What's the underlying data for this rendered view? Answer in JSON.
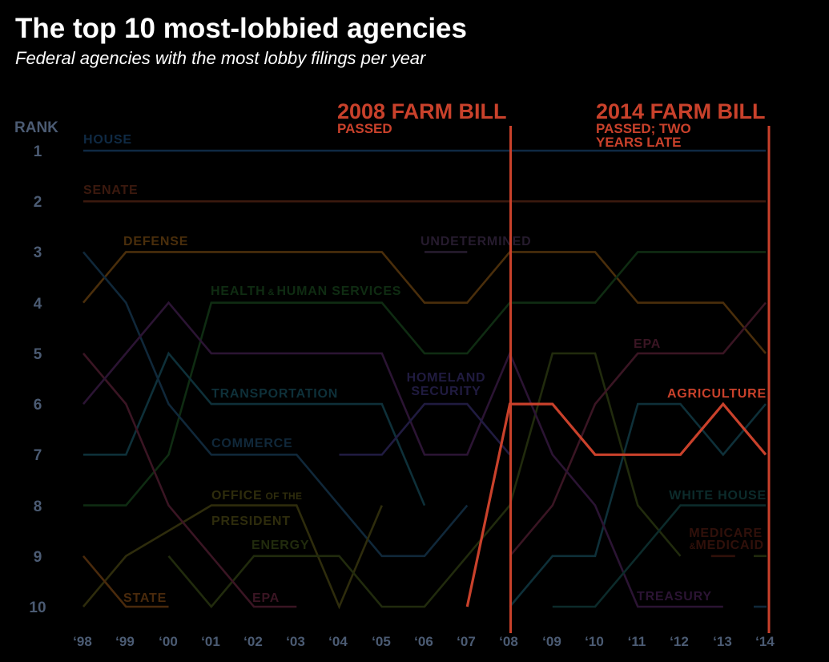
{
  "colors": {
    "background": "#000000",
    "title": "#ffffff",
    "axis_text": "#4b5b73",
    "annotation": "#c9412b"
  },
  "chart_data": {
    "type": "line",
    "subtype": "bump",
    "title": "The top 10 most-lobbied agencies",
    "subtitle": "Federal agencies with the most lobby filings per year",
    "xlabel": "",
    "ylabel": "RANK",
    "x": [
      1998,
      1999,
      2000,
      2001,
      2002,
      2003,
      2004,
      2005,
      2006,
      2007,
      2008,
      2009,
      2010,
      2011,
      2012,
      2013,
      2014
    ],
    "x_tick_labels": [
      "‘98",
      "‘99",
      "‘00",
      "‘01",
      "‘02",
      "‘03",
      "‘04",
      "‘05",
      "‘06",
      "‘07",
      "‘08",
      "‘09",
      "‘10",
      "‘11",
      "‘12",
      "‘13",
      "‘14"
    ],
    "y_tick_labels": [
      "1",
      "2",
      "3",
      "4",
      "5",
      "6",
      "7",
      "8",
      "9",
      "10"
    ],
    "ylim": [
      1,
      10
    ],
    "y_inverted": true,
    "grid": false,
    "legend": "direct labels on lines",
    "series": [
      {
        "id": "house",
        "name": "House",
        "label": "HOUSE",
        "color": "#0f2a44",
        "values": [
          1,
          1,
          1,
          1,
          1,
          1,
          1,
          1,
          1,
          1,
          1,
          1,
          1,
          1,
          1,
          1,
          1
        ]
      },
      {
        "id": "senate",
        "name": "Senate",
        "label": "SENATE",
        "color": "#3b190e",
        "values": [
          2,
          2,
          2,
          2,
          2,
          2,
          2,
          2,
          2,
          2,
          2,
          2,
          2,
          2,
          2,
          2,
          2
        ]
      },
      {
        "id": "defense",
        "name": "Defense",
        "label": "DEFENSE",
        "color": "#4a2e0b",
        "values": [
          4,
          3,
          3,
          3,
          3,
          3,
          3,
          3,
          4,
          4,
          3,
          3,
          3,
          4,
          4,
          4,
          5
        ]
      },
      {
        "id": "hhs",
        "name": "Health & Human Services",
        "label": "HEALTH & HUMAN SERVICES",
        "label_parts": [
          "HEALTH",
          "&",
          "HUMAN SERVICES"
        ],
        "color": "#0f2c12",
        "values": [
          8,
          8,
          7,
          4,
          4,
          4,
          4,
          4,
          5,
          5,
          4,
          4,
          4,
          3,
          3,
          3,
          3
        ]
      },
      {
        "id": "transportation",
        "name": "Transportation",
        "label": "TRANSPORTATION",
        "color": "#0e3039",
        "values": [
          7,
          7,
          5,
          6,
          6,
          6,
          6,
          6,
          8,
          null,
          10,
          9,
          9,
          6,
          6,
          7,
          6
        ]
      },
      {
        "id": "commerce",
        "name": "Commerce",
        "label": "COMMERCE",
        "color": "#10283a",
        "values": [
          3,
          4,
          6,
          7,
          7,
          7,
          8,
          9,
          9,
          8,
          null,
          null,
          null,
          null,
          null,
          null,
          10
        ]
      },
      {
        "id": "office-of-the-president",
        "name": "Office of the President",
        "label": "OFFICE OF THE PRESIDENT",
        "label_parts": [
          "OFFICE",
          "OF THE",
          "PRESIDENT"
        ],
        "color": "#2e2c0c",
        "connect_gaps": true,
        "values": [
          10,
          9,
          null,
          8,
          8,
          8,
          10,
          8,
          null,
          null,
          null,
          null,
          null,
          null,
          null,
          null,
          null
        ]
      },
      {
        "id": "energy",
        "name": "Energy",
        "label": "ENERGY",
        "color": "#212b0d",
        "values": [
          null,
          null,
          9,
          10,
          9,
          9,
          9,
          10,
          10,
          9,
          8,
          5,
          5,
          8,
          9,
          null,
          9
        ]
      },
      {
        "id": "state",
        "name": "State",
        "label": "STATE",
        "color": "#4a2a0c",
        "values": [
          9,
          10,
          10,
          null,
          null,
          null,
          null,
          null,
          null,
          null,
          null,
          null,
          null,
          null,
          null,
          null,
          null
        ]
      },
      {
        "id": "epa",
        "name": "EPA",
        "label": "EPA",
        "color": "#3a1523",
        "values": [
          5,
          6,
          8,
          9,
          10,
          10,
          null,
          null,
          null,
          null,
          9,
          8,
          6,
          5,
          5,
          5,
          4
        ]
      },
      {
        "id": "treasury",
        "name": "Treasury",
        "label": "TREASURY",
        "color": "#2b1433",
        "values": [
          6,
          5,
          4,
          5,
          5,
          5,
          5,
          5,
          7,
          7,
          5,
          7,
          8,
          10,
          10,
          10,
          null
        ]
      },
      {
        "id": "homeland-security",
        "name": "Homeland Security",
        "label": "HOMELAND SECURITY",
        "label_parts": [
          "HOMELAND",
          "SECURITY"
        ],
        "color": "#201b40",
        "values": [
          null,
          null,
          null,
          null,
          null,
          null,
          7,
          7,
          6,
          6,
          7,
          null,
          null,
          null,
          null,
          null,
          null
        ]
      },
      {
        "id": "undetermined",
        "name": "Undetermined",
        "label": "UNDETERMINED",
        "color": "#261b2e",
        "values": [
          null,
          null,
          null,
          null,
          null,
          null,
          null,
          null,
          3,
          3,
          null,
          null,
          null,
          null,
          null,
          null,
          null
        ]
      },
      {
        "id": "white-house",
        "name": "White House",
        "label": "WHITE HOUSE",
        "color": "#0c2b2b",
        "values": [
          null,
          null,
          null,
          null,
          null,
          null,
          null,
          null,
          null,
          null,
          null,
          10,
          10,
          9,
          8,
          8,
          8
        ]
      },
      {
        "id": "medicare-medicaid",
        "name": "Medicare & Medicaid",
        "label": "MEDICARE & MEDICAID",
        "label_parts": [
          "MEDICARE",
          "&",
          "MEDICAID"
        ],
        "color": "#30100a",
        "values": [
          null,
          null,
          null,
          null,
          null,
          null,
          null,
          null,
          null,
          null,
          null,
          null,
          null,
          null,
          null,
          9,
          null
        ]
      },
      {
        "id": "agriculture",
        "name": "Agriculture",
        "label": "AGRICULTURE",
        "color": "#c9412b",
        "highlight": true,
        "values": [
          null,
          null,
          null,
          null,
          null,
          null,
          null,
          null,
          null,
          10,
          6,
          6,
          7,
          7,
          7,
          6,
          7
        ]
      }
    ],
    "annotations": [
      {
        "year": 2008,
        "title": "2008 FARM BILL",
        "lines": [
          "PASSED"
        ]
      },
      {
        "year": 2014,
        "title": "2014 FARM BILL",
        "lines": [
          "PASSED; TWO",
          "YEARS LATE"
        ]
      }
    ]
  }
}
